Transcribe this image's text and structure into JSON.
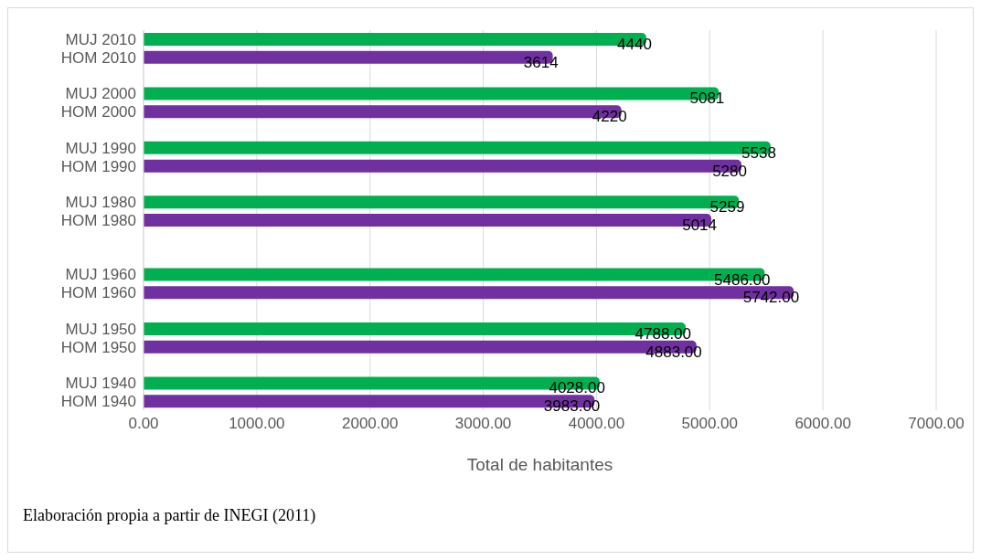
{
  "chart_data": {
    "type": "bar",
    "orientation": "horizontal",
    "xlabel": "Total de habitantes",
    "categories": [
      "MUJ 2010",
      "HOM 2010",
      null,
      "MUJ 2000",
      "HOM 2000",
      null,
      "MUJ 1990",
      "HOM 1990",
      null,
      "MUJ 1980",
      "HOM 1980",
      null,
      null,
      "MUJ 1960",
      "HOM 1960",
      null,
      "MUJ 1950",
      "HOM 1950",
      null,
      "MUJ 1940",
      "HOM 1940"
    ],
    "values": [
      4440,
      3614,
      null,
      5081,
      4220,
      null,
      5538,
      5280,
      null,
      5259,
      5014,
      null,
      null,
      5486,
      5742,
      null,
      4788,
      4883,
      null,
      4028,
      3983
    ],
    "colors": [
      "#00b050",
      "#7030a0",
      null,
      "#00b050",
      "#7030a0",
      null,
      "#00b050",
      "#7030a0",
      null,
      "#00b050",
      "#7030a0",
      null,
      null,
      "#00b050",
      "#7030a0",
      null,
      "#00b050",
      "#7030a0",
      null,
      "#00b050",
      "#7030a0"
    ],
    "value_labels": [
      "4440",
      "3614",
      null,
      "5081",
      "4220",
      null,
      "5538",
      "5280",
      null,
      "5259",
      "5014",
      null,
      null,
      "5486.00",
      "5742.00",
      null,
      "4788.00",
      "4883.00",
      null,
      "4028.00",
      "3983.00"
    ],
    "xlim": [
      0,
      7000
    ],
    "xticks": [
      {
        "value": 0,
        "label": "0.00"
      },
      {
        "value": 1000,
        "label": "1000.00"
      },
      {
        "value": 2000,
        "label": "2000.00"
      },
      {
        "value": 3000,
        "label": "3000.00"
      },
      {
        "value": 4000,
        "label": "4000.00"
      },
      {
        "value": 5000,
        "label": "5000.00"
      },
      {
        "value": 6000,
        "label": "6000.00"
      },
      {
        "value": 7000,
        "label": "7000.00"
      }
    ],
    "grid": "x",
    "annotations": [
      "Elaboración propia a partir de INEGI (2011)"
    ]
  }
}
